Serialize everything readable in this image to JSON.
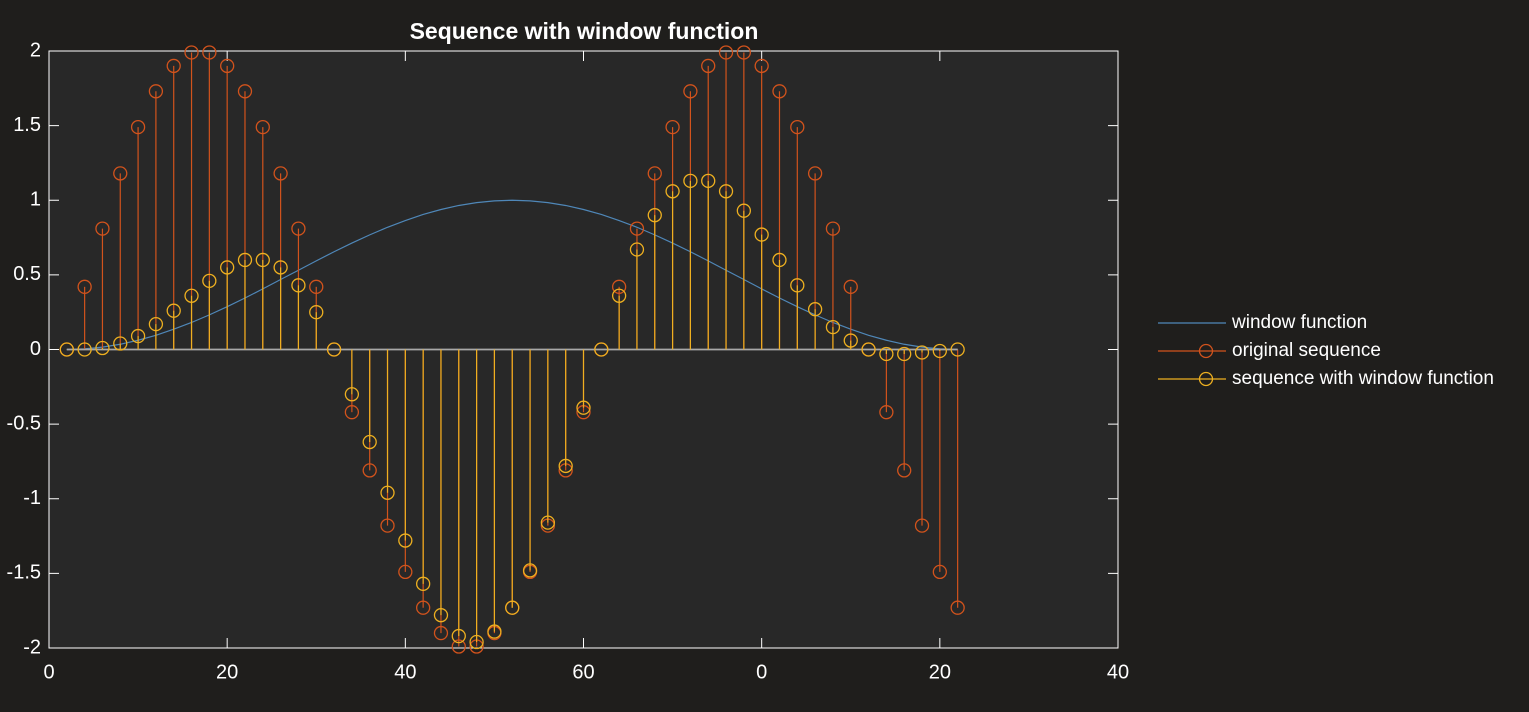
{
  "chart_data": {
    "type": "stem",
    "title": "Sequence with window function",
    "x": [
      2,
      4,
      6,
      8,
      10,
      12,
      14,
      16,
      18,
      20,
      22,
      24,
      26,
      28,
      30,
      32,
      34,
      36,
      38,
      40,
      42,
      44,
      46,
      48,
      50,
      52,
      54,
      56,
      58,
      60,
      62,
      64,
      66,
      68,
      70,
      72,
      74,
      76,
      78,
      80,
      82,
      84,
      86,
      88,
      90,
      92,
      94,
      96,
      98,
      100,
      102
    ],
    "series": [
      {
        "name": "window function",
        "kind": "line",
        "color": "#4f87b8",
        "values": [
          0,
          0.004,
          0.016,
          0.035,
          0.062,
          0.095,
          0.136,
          0.181,
          0.232,
          0.287,
          0.345,
          0.406,
          0.469,
          0.531,
          0.594,
          0.655,
          0.713,
          0.768,
          0.819,
          0.864,
          0.905,
          0.938,
          0.965,
          0.984,
          0.996,
          1,
          0.996,
          0.984,
          0.965,
          0.938,
          0.905,
          0.864,
          0.819,
          0.768,
          0.713,
          0.655,
          0.594,
          0.531,
          0.469,
          0.406,
          0.345,
          0.287,
          0.232,
          0.181,
          0.136,
          0.095,
          0.062,
          0.035,
          0.016,
          0.004,
          0
        ]
      },
      {
        "name": "original sequence",
        "kind": "stem",
        "color": "#d2531c",
        "values": [
          0,
          0.42,
          0.81,
          1.18,
          1.49,
          1.73,
          1.9,
          1.99,
          1.99,
          1.9,
          1.73,
          1.49,
          1.18,
          0.81,
          0.42,
          0,
          -0.42,
          -0.81,
          -1.18,
          -1.49,
          -1.73,
          -1.9,
          -1.99,
          -1.99,
          -1.9,
          -1.73,
          -1.49,
          -1.18,
          -0.81,
          -0.42,
          0,
          0.42,
          0.81,
          1.18,
          1.49,
          1.73,
          1.9,
          1.99,
          1.99,
          1.9,
          1.73,
          1.49,
          1.18,
          0.81,
          0.42,
          0,
          -0.42,
          -0.81,
          -1.18,
          -1.49,
          -1.73
        ]
      },
      {
        "name": "sequence with window function",
        "kind": "stem",
        "color": "#eeb020",
        "values": [
          0,
          0,
          0.01,
          0.04,
          0.09,
          0.17,
          0.26,
          0.36,
          0.46,
          0.55,
          0.6,
          0.6,
          0.55,
          0.43,
          0.25,
          0,
          -0.3,
          -0.62,
          -0.96,
          -1.28,
          -1.57,
          -1.78,
          -1.92,
          -1.96,
          -1.89,
          -1.73,
          -1.48,
          -1.16,
          -0.78,
          -0.39,
          0,
          0.36,
          0.67,
          0.9,
          1.06,
          1.13,
          1.13,
          1.06,
          0.93,
          0.77,
          0.6,
          0.43,
          0.27,
          0.15,
          0.06,
          0,
          -0.03,
          -0.03,
          -0.02,
          -0.01,
          0
        ]
      }
    ],
    "xlim": [
      0,
      120
    ],
    "xticks": [
      0,
      20,
      40,
      60,
      {
        "value": 80,
        "label": "0"
      },
      {
        "value": 100,
        "label": "20"
      },
      {
        "value": 120,
        "label": "40"
      }
    ],
    "ylim": [
      -2,
      2
    ],
    "yticks": [
      -2,
      -1.5,
      -1,
      -0.5,
      0,
      0.5,
      1,
      1.5,
      2
    ],
    "grid": false,
    "legend": "right"
  }
}
